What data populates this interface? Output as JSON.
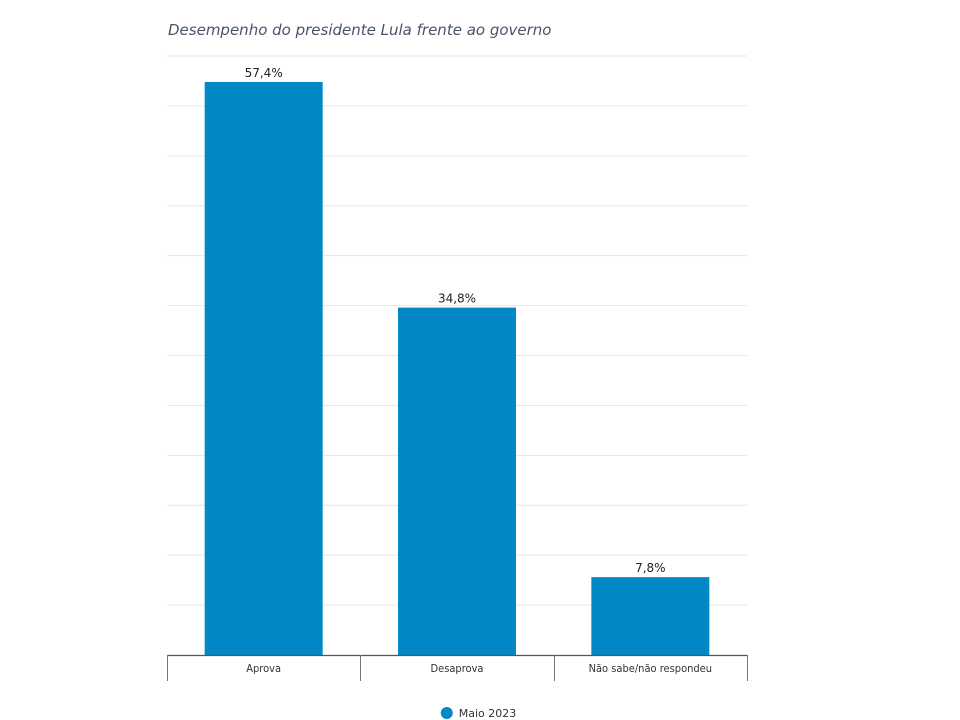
{
  "chart_data": {
    "type": "bar",
    "title": "",
    "subtitle": "Desempenho do presidente Lula frente ao governo",
    "categories": [
      "Aprova",
      "Desaprova",
      "Não sabe/não respondeu"
    ],
    "series": [
      {
        "name": "Maio 2023",
        "values": [
          57.4,
          34.8,
          7.8
        ],
        "labels": [
          "57,4%",
          "34,8%",
          "7,8%"
        ]
      }
    ],
    "ylim": [
      0,
      60
    ],
    "y_grid_step": 5,
    "grid": true,
    "y_axis_labels_shown": false,
    "legend_position": "bottom",
    "bar_color": "#0289c5",
    "xlabel": "",
    "ylabel": ""
  }
}
